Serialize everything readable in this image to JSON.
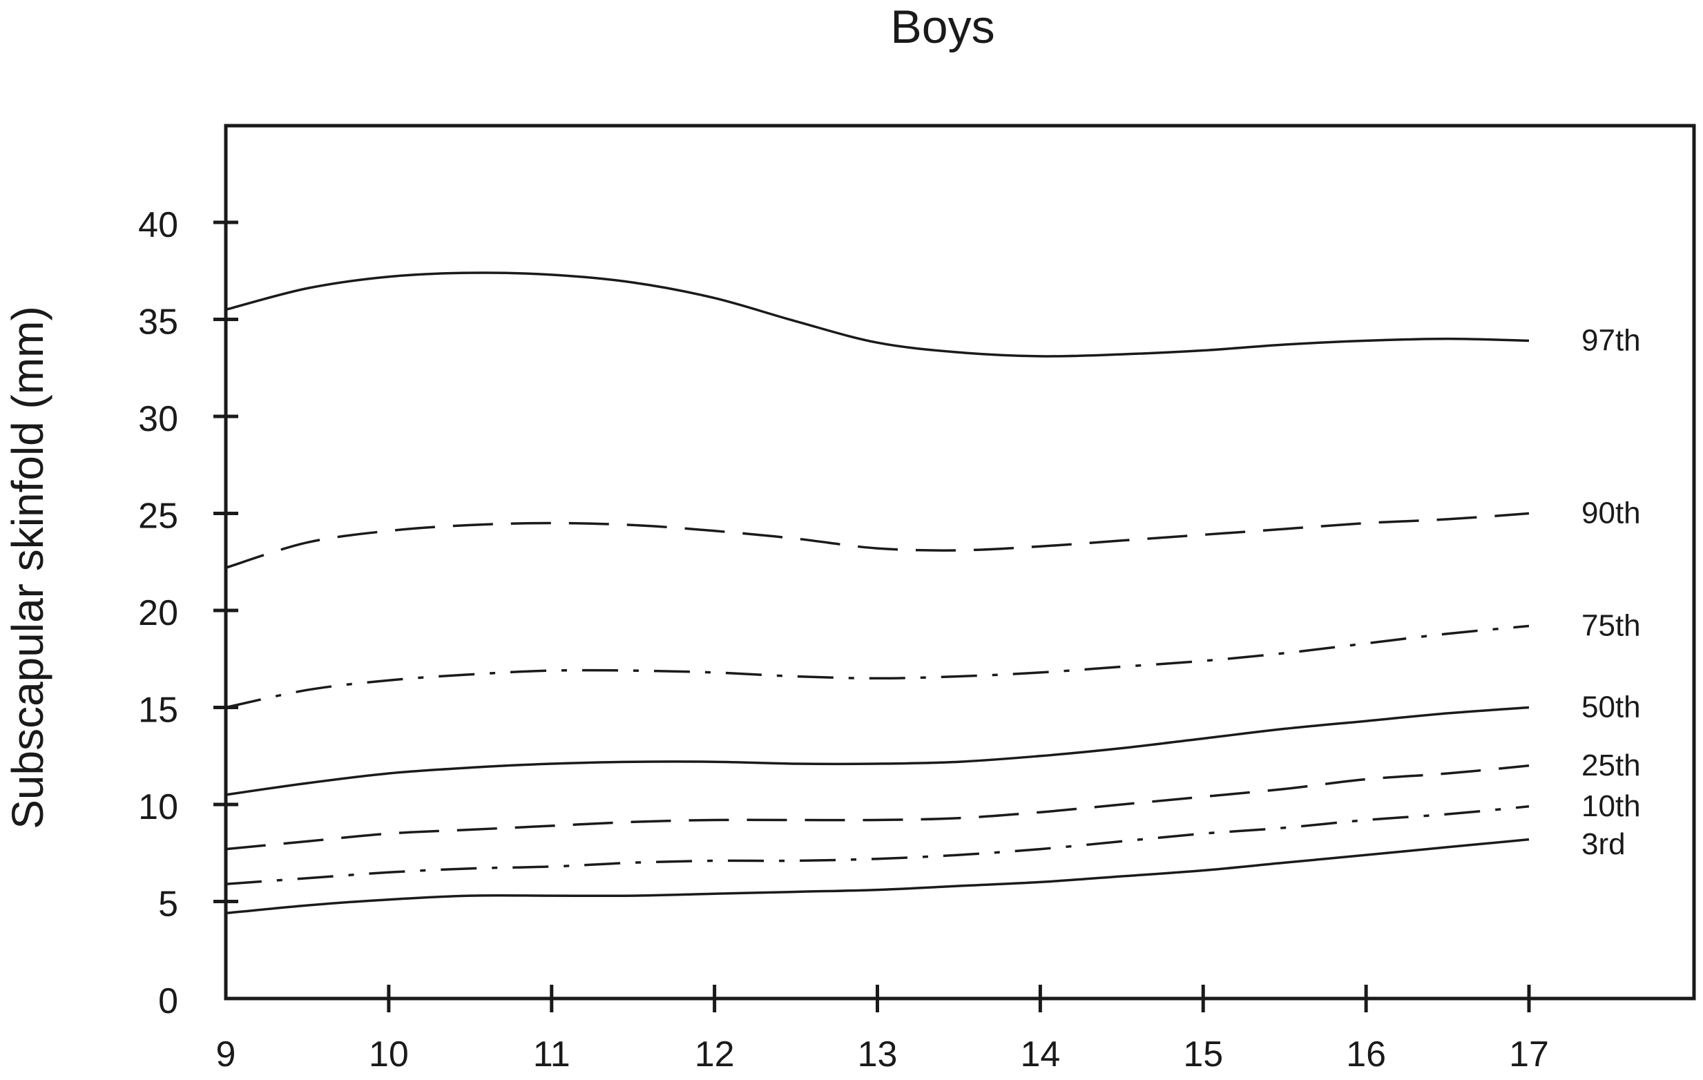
{
  "chart_data": {
    "type": "line",
    "title": "Boys",
    "xlabel": "",
    "ylabel": "Subscapular skinfold (mm)",
    "xlim": [
      9,
      18
    ],
    "ylim": [
      0,
      45
    ],
    "x_ticks": [
      9,
      10,
      11,
      12,
      13,
      14,
      15,
      16,
      17
    ],
    "y_ticks": [
      0,
      5,
      10,
      15,
      20,
      25,
      30,
      35,
      40
    ],
    "x_tick_labels": [
      "9",
      "10",
      "11",
      "12",
      "13",
      "14",
      "15",
      "16",
      "17"
    ],
    "y_tick_labels": [
      "0",
      "5",
      "10",
      "15",
      "20",
      "25",
      "30",
      "35",
      "40"
    ],
    "grid": false,
    "legend": "none",
    "series": [
      {
        "name": "97th",
        "style": "solid",
        "color": "#1a1a1a",
        "x": [
          9,
          9.5,
          10,
          10.5,
          11,
          11.5,
          12,
          12.5,
          13,
          13.5,
          14,
          14.5,
          15,
          15.5,
          16,
          16.5,
          17
        ],
        "y": [
          35.5,
          36.6,
          37.2,
          37.4,
          37.3,
          36.9,
          36.1,
          34.9,
          33.8,
          33.3,
          33.1,
          33.2,
          33.4,
          33.7,
          33.9,
          34.0,
          33.9
        ]
      },
      {
        "name": "90th",
        "style": "dash",
        "color": "#1a1a1a",
        "x": [
          9,
          9.5,
          10,
          10.5,
          11,
          11.5,
          12,
          12.5,
          13,
          13.5,
          14,
          14.5,
          15,
          15.5,
          16,
          16.5,
          17
        ],
        "y": [
          22.2,
          23.5,
          24.1,
          24.4,
          24.5,
          24.4,
          24.1,
          23.7,
          23.2,
          23.1,
          23.3,
          23.6,
          23.9,
          24.2,
          24.5,
          24.7,
          25.0
        ]
      },
      {
        "name": "75th",
        "style": "dashdot",
        "color": "#1a1a1a",
        "x": [
          9,
          9.5,
          10,
          10.5,
          11,
          11.5,
          12,
          12.5,
          13,
          13.5,
          14,
          14.5,
          15,
          15.5,
          16,
          16.5,
          17
        ],
        "y": [
          15.0,
          15.9,
          16.4,
          16.7,
          16.9,
          16.9,
          16.8,
          16.6,
          16.5,
          16.6,
          16.8,
          17.1,
          17.4,
          17.8,
          18.3,
          18.8,
          19.2
        ]
      },
      {
        "name": "50th",
        "style": "solid",
        "color": "#1a1a1a",
        "x": [
          9,
          9.5,
          10,
          10.5,
          11,
          11.5,
          12,
          12.5,
          13,
          13.5,
          14,
          14.5,
          15,
          15.5,
          16,
          16.5,
          17
        ],
        "y": [
          10.5,
          11.1,
          11.6,
          11.9,
          12.1,
          12.2,
          12.2,
          12.1,
          12.1,
          12.2,
          12.5,
          12.9,
          13.4,
          13.9,
          14.3,
          14.7,
          15.0
        ]
      },
      {
        "name": "25th",
        "style": "dash",
        "color": "#1a1a1a",
        "x": [
          9,
          9.5,
          10,
          10.5,
          11,
          11.5,
          12,
          12.5,
          13,
          13.5,
          14,
          14.5,
          15,
          15.5,
          16,
          16.5,
          17
        ],
        "y": [
          7.7,
          8.1,
          8.5,
          8.7,
          8.9,
          9.1,
          9.2,
          9.2,
          9.2,
          9.3,
          9.6,
          10.0,
          10.4,
          10.8,
          11.3,
          11.6,
          12.0
        ]
      },
      {
        "name": "10th",
        "style": "dashdot",
        "color": "#1a1a1a",
        "x": [
          9,
          9.5,
          10,
          10.5,
          11,
          11.5,
          12,
          12.5,
          13,
          13.5,
          14,
          14.5,
          15,
          15.5,
          16,
          16.5,
          17
        ],
        "y": [
          5.9,
          6.2,
          6.5,
          6.7,
          6.8,
          7.0,
          7.1,
          7.1,
          7.2,
          7.4,
          7.7,
          8.1,
          8.5,
          8.8,
          9.2,
          9.5,
          9.9
        ]
      },
      {
        "name": "3rd",
        "style": "solid",
        "color": "#1a1a1a",
        "x": [
          9,
          9.5,
          10,
          10.5,
          11,
          11.5,
          12,
          12.5,
          13,
          13.5,
          14,
          14.5,
          15,
          15.5,
          16,
          16.5,
          17
        ],
        "y": [
          4.4,
          4.8,
          5.1,
          5.3,
          5.3,
          5.3,
          5.4,
          5.5,
          5.6,
          5.8,
          6.0,
          6.3,
          6.6,
          7.0,
          7.4,
          7.8,
          8.2
        ]
      }
    ]
  }
}
